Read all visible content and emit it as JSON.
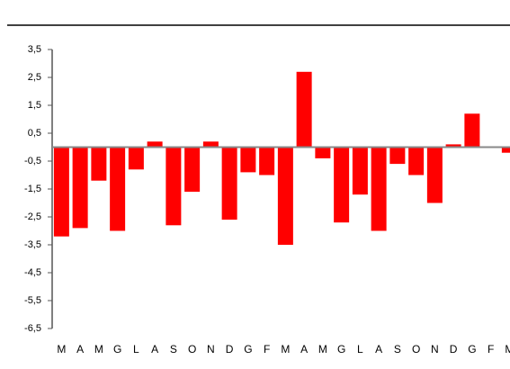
{
  "chart_data": {
    "type": "bar",
    "categories": [
      "M",
      "A",
      "M",
      "G",
      "L",
      "A",
      "S",
      "O",
      "N",
      "D",
      "G",
      "F",
      "M",
      "A",
      "M",
      "G",
      "L",
      "A",
      "S",
      "O",
      "N",
      "D",
      "G",
      "F",
      "M"
    ],
    "values": [
      -3.2,
      -2.9,
      -1.2,
      -3.0,
      -0.8,
      0.2,
      -2.8,
      -1.6,
      0.2,
      -2.6,
      -0.9,
      -1.0,
      -3.5,
      2.7,
      -0.4,
      -2.7,
      -1.7,
      -3.0,
      -0.6,
      -1.0,
      -2.0,
      0.1,
      1.2,
      0.0,
      -0.2
    ],
    "color": "#ff0000",
    "ylim": [
      -6.5,
      3.5
    ],
    "yticks": [
      {
        "value": 3.5,
        "label": "3,5"
      },
      {
        "value": 2.5,
        "label": "2,5"
      },
      {
        "value": 1.5,
        "label": "1,5"
      },
      {
        "value": 0.5,
        "label": "0,5"
      },
      {
        "value": -0.5,
        "label": "-0,5"
      },
      {
        "value": -1.5,
        "label": "-1,5"
      },
      {
        "value": -2.5,
        "label": "-2,5"
      },
      {
        "value": -3.5,
        "label": "-3,5"
      },
      {
        "value": -4.5,
        "label": "-4,5"
      },
      {
        "value": -5.5,
        "label": "-5,5"
      },
      {
        "value": -6.5,
        "label": "-6,5"
      }
    ],
    "grid": false
  }
}
